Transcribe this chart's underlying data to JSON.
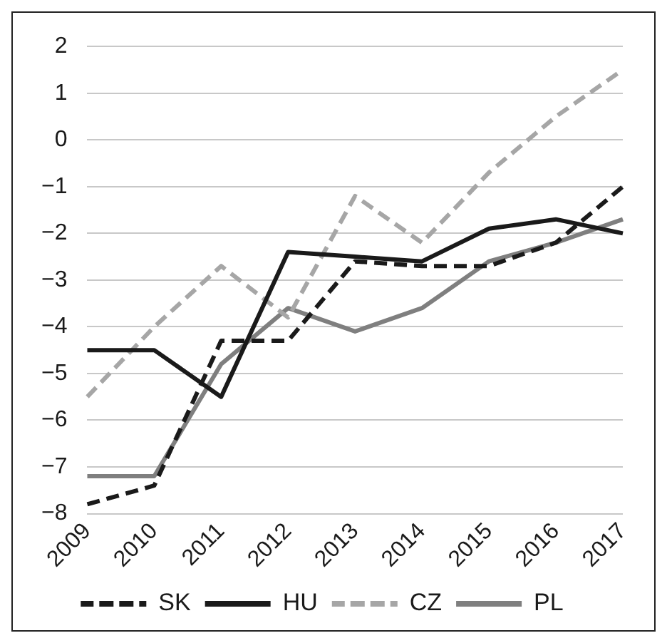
{
  "chart_data": {
    "type": "line",
    "categories": [
      "2009",
      "2010",
      "2011",
      "2012",
      "2013",
      "2014",
      "2015",
      "2016",
      "2017"
    ],
    "series": [
      {
        "name": "SK",
        "color": "#1a1a1a",
        "line_style": "dashed",
        "values": [
          -7.8,
          -7.4,
          -4.3,
          -4.3,
          -2.6,
          -2.7,
          -2.7,
          -2.2,
          -1.0
        ]
      },
      {
        "name": "HU",
        "color": "#1a1a1a",
        "line_style": "solid",
        "values": [
          -4.5,
          -4.5,
          -5.5,
          -2.4,
          -2.5,
          -2.6,
          -1.9,
          -1.7,
          -2.0
        ]
      },
      {
        "name": "CZ",
        "color": "#a6a6a6",
        "line_style": "dashed",
        "values": [
          -5.5,
          -4.0,
          -2.7,
          -3.8,
          -1.2,
          -2.2,
          -0.7,
          0.5,
          1.5
        ]
      },
      {
        "name": "PL",
        "color": "#7f7f7f",
        "line_style": "solid",
        "values": [
          -7.2,
          -7.2,
          -4.8,
          -3.6,
          -4.1,
          -3.6,
          -2.6,
          -2.2,
          -1.7
        ]
      }
    ],
    "ylim": [
      -8,
      2
    ],
    "yticks": [
      {
        "value": -8,
        "label": "−8"
      },
      {
        "value": -7,
        "label": "−7"
      },
      {
        "value": -6,
        "label": "−6"
      },
      {
        "value": -5,
        "label": "−5"
      },
      {
        "value": -4,
        "label": "−4"
      },
      {
        "value": -3,
        "label": "−3"
      },
      {
        "value": -2,
        "label": "−2"
      },
      {
        "value": -1,
        "label": "−1"
      },
      0,
      1,
      2
    ],
    "grid": "y",
    "legend": "bottom",
    "marker": "none"
  }
}
